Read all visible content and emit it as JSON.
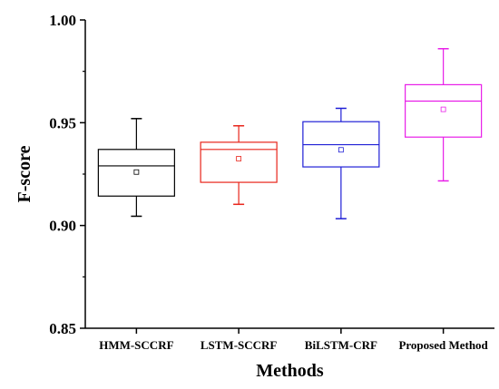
{
  "chart_data": {
    "type": "box",
    "xlabel": "Methods",
    "ylabel": "F-score",
    "ylim": [
      0.85,
      1.0
    ],
    "yticks": [
      "0.85",
      "0.90",
      "0.95",
      "1.00"
    ],
    "categories": [
      "HMM-SCCRF",
      "LSTM-SCCRF",
      "BiLSTM-CRF",
      "Proposed Method"
    ],
    "boxes": [
      {
        "min": 0.9045,
        "q1": 0.9143,
        "median": 0.929,
        "q3": 0.937,
        "max": 0.952,
        "mean": 0.926,
        "color": "#000000"
      },
      {
        "min": 0.9103,
        "q1": 0.921,
        "median": 0.937,
        "q3": 0.9405,
        "max": 0.9485,
        "mean": 0.9325,
        "color": "#e8241a"
      },
      {
        "min": 0.9033,
        "q1": 0.9285,
        "median": 0.9393,
        "q3": 0.9505,
        "max": 0.957,
        "mean": 0.9368,
        "color": "#1f1fd6"
      },
      {
        "min": 0.9217,
        "q1": 0.943,
        "median": 0.9605,
        "q3": 0.9685,
        "max": 0.986,
        "mean": 0.9565,
        "color": "#e81ee8"
      }
    ],
    "grid": false,
    "legend": "none"
  }
}
